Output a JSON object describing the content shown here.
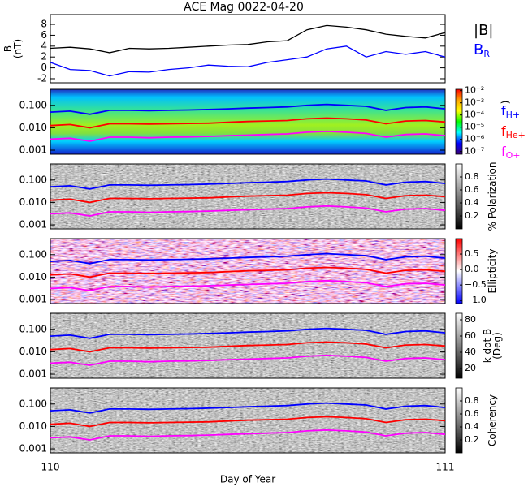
{
  "chart_data": [
    {
      "type": "line",
      "title": "ACE Mag 0022-04-20",
      "ylabel": [
        "B",
        "(nT)"
      ],
      "xlim": [
        110,
        111
      ],
      "ylim": [
        -2.75,
        9.8
      ],
      "yticks": [
        -2,
        0,
        2,
        4,
        6,
        8
      ],
      "x": [
        110,
        110.05,
        110.1,
        110.15,
        110.2,
        110.25,
        110.3,
        110.35,
        110.4,
        110.45,
        110.5,
        110.55,
        110.6,
        110.65,
        110.7,
        110.75,
        110.8,
        110.85,
        110.9,
        110.95,
        111
      ],
      "series": [
        {
          "name": "|B|",
          "color": "#000000",
          "values": [
            3.6,
            3.8,
            3.5,
            2.8,
            3.6,
            3.5,
            3.6,
            3.8,
            4.0,
            4.2,
            4.3,
            4.8,
            5.0,
            7.0,
            7.8,
            7.5,
            7.0,
            6.2,
            5.8,
            5.5,
            6.5
          ]
        },
        {
          "name": "B",
          "subscript": "R",
          "color": "#0000ff",
          "values": [
            1.0,
            -0.3,
            -0.5,
            -1.5,
            -0.7,
            -0.8,
            -0.3,
            0.0,
            0.5,
            0.3,
            0.2,
            1.0,
            1.5,
            2.0,
            3.5,
            4.0,
            2.0,
            3.0,
            2.5,
            3.0,
            2.0
          ]
        }
      ]
    },
    {
      "type": "spectrogram",
      "log_y": true,
      "legend": true,
      "xlim": [
        110,
        111
      ],
      "ylim": [
        0.00066,
        0.52
      ],
      "yticks": [
        {
          "value": 0.1,
          "label": "0.100"
        },
        {
          "value": 0.01,
          "label": "0.010"
        },
        {
          "value": 0.001,
          "label": "0.001"
        }
      ],
      "x": [
        110,
        110.05,
        110.1,
        110.15,
        110.2,
        110.25,
        110.3,
        110.35,
        110.4,
        110.45,
        110.5,
        110.55,
        110.6,
        110.65,
        110.7,
        110.75,
        110.8,
        110.85,
        110.9,
        110.95,
        111
      ],
      "series": [
        {
          "name": "f",
          "subscript": "H+",
          "color": "#0000ff",
          "values": [
            0.05,
            0.055,
            0.04,
            0.06,
            0.06,
            0.058,
            0.06,
            0.062,
            0.065,
            0.07,
            0.075,
            0.08,
            0.085,
            0.1,
            0.11,
            0.1,
            0.09,
            0.06,
            0.08,
            0.085,
            0.07
          ]
        },
        {
          "name": "f",
          "subscript": "He+",
          "color": "#ff0000",
          "values": [
            0.0125,
            0.014,
            0.01,
            0.015,
            0.015,
            0.0145,
            0.015,
            0.0155,
            0.016,
            0.0175,
            0.019,
            0.02,
            0.021,
            0.025,
            0.027,
            0.025,
            0.022,
            0.015,
            0.02,
            0.021,
            0.018
          ]
        },
        {
          "name": "f",
          "subscript": "O+",
          "color": "#ff00ff",
          "values": [
            0.0031,
            0.0034,
            0.0025,
            0.0038,
            0.0038,
            0.0036,
            0.0038,
            0.0039,
            0.0041,
            0.0044,
            0.0047,
            0.005,
            0.0053,
            0.0063,
            0.0069,
            0.0063,
            0.0056,
            0.0038,
            0.005,
            0.0053,
            0.0044
          ]
        }
      ],
      "colorbar": {
        "label": [
          ")"
        ],
        "colormap": "rainbow",
        "log": true,
        "lim": [
          6e-08,
          0.013
        ],
        "ticks": [
          {
            "value": 0.01,
            "label": "10⁻²"
          },
          {
            "value": 0.001,
            "label": "10⁻³"
          },
          {
            "value": 0.0001,
            "label": "10⁻⁴"
          },
          {
            "value": 1e-05,
            "label": "10⁻⁵"
          },
          {
            "value": 1e-06,
            "label": "10⁻⁶"
          },
          {
            "value": 1e-07,
            "label": "10⁻⁷"
          }
        ]
      }
    },
    {
      "type": "spectrogram",
      "log_y": true,
      "xlim": [
        110,
        111
      ],
      "ylim": [
        0.00066,
        0.52
      ],
      "yticks": [
        {
          "value": 0.1,
          "label": "0.100"
        },
        {
          "value": 0.01,
          "label": "0.010"
        },
        {
          "value": 0.001,
          "label": "0.001"
        }
      ],
      "x": [
        110,
        110.05,
        110.1,
        110.15,
        110.2,
        110.25,
        110.3,
        110.35,
        110.4,
        110.45,
        110.5,
        110.55,
        110.6,
        110.65,
        110.7,
        110.75,
        110.8,
        110.85,
        110.9,
        110.95,
        111
      ],
      "series": [
        {
          "color": "#0000ff",
          "values": [
            0.05,
            0.055,
            0.04,
            0.06,
            0.06,
            0.058,
            0.06,
            0.062,
            0.065,
            0.07,
            0.075,
            0.08,
            0.085,
            0.1,
            0.11,
            0.1,
            0.09,
            0.06,
            0.08,
            0.085,
            0.07
          ]
        },
        {
          "color": "#ff0000",
          "values": [
            0.0125,
            0.014,
            0.01,
            0.015,
            0.015,
            0.0145,
            0.015,
            0.0155,
            0.016,
            0.0175,
            0.019,
            0.02,
            0.021,
            0.025,
            0.027,
            0.025,
            0.022,
            0.015,
            0.02,
            0.021,
            0.018
          ]
        },
        {
          "color": "#ff00ff",
          "values": [
            0.0031,
            0.0034,
            0.0025,
            0.0038,
            0.0038,
            0.0036,
            0.0038,
            0.0039,
            0.0041,
            0.0044,
            0.0047,
            0.005,
            0.0053,
            0.0063,
            0.0069,
            0.0063,
            0.0056,
            0.0038,
            0.005,
            0.0053,
            0.0044
          ]
        }
      ],
      "colorbar": {
        "label": [
          "% Polarization"
        ],
        "colormap": "gray",
        "lim": [
          0,
          1
        ],
        "ticks": [
          0.2,
          0.4,
          0.6,
          0.8
        ]
      }
    },
    {
      "type": "spectrogram",
      "log_y": true,
      "xlim": [
        110,
        111
      ],
      "ylim": [
        0.00066,
        0.52
      ],
      "yticks": [
        {
          "value": 0.1,
          "label": "0.100"
        },
        {
          "value": 0.01,
          "label": "0.010"
        },
        {
          "value": 0.001,
          "label": "0.001"
        }
      ],
      "x": [
        110,
        110.05,
        110.1,
        110.15,
        110.2,
        110.25,
        110.3,
        110.35,
        110.4,
        110.45,
        110.5,
        110.55,
        110.6,
        110.65,
        110.7,
        110.75,
        110.8,
        110.85,
        110.9,
        110.95,
        111
      ],
      "series": [
        {
          "color": "#0000ff",
          "values": [
            0.05,
            0.055,
            0.04,
            0.06,
            0.06,
            0.058,
            0.06,
            0.062,
            0.065,
            0.07,
            0.075,
            0.08,
            0.085,
            0.1,
            0.11,
            0.1,
            0.09,
            0.06,
            0.08,
            0.085,
            0.07
          ]
        },
        {
          "color": "#ff0000",
          "values": [
            0.0125,
            0.014,
            0.01,
            0.015,
            0.015,
            0.0145,
            0.015,
            0.0155,
            0.016,
            0.0175,
            0.019,
            0.02,
            0.021,
            0.025,
            0.027,
            0.025,
            0.022,
            0.015,
            0.02,
            0.021,
            0.018
          ]
        },
        {
          "color": "#ff00ff",
          "values": [
            0.0031,
            0.0034,
            0.0025,
            0.0038,
            0.0038,
            0.0036,
            0.0038,
            0.0039,
            0.0041,
            0.0044,
            0.0047,
            0.005,
            0.0053,
            0.0063,
            0.0069,
            0.0063,
            0.0056,
            0.0038,
            0.005,
            0.0053,
            0.0044
          ]
        }
      ],
      "colorbar": {
        "label": [
          "Ellipticity"
        ],
        "colormap": "bwr",
        "lim": [
          -1.1,
          1
        ],
        "ticks": [
          {
            "value": 0.5,
            "label": "0.5"
          },
          {
            "value": 0,
            "label": "0.0"
          },
          {
            "value": -0.5,
            "label": "−0.5"
          },
          {
            "value": -1,
            "label": "−1.0"
          }
        ]
      }
    },
    {
      "type": "spectrogram",
      "log_y": true,
      "xlim": [
        110,
        111
      ],
      "ylim": [
        0.00066,
        0.52
      ],
      "yticks": [
        {
          "value": 0.1,
          "label": "0.100"
        },
        {
          "value": 0.01,
          "label": "0.010"
        },
        {
          "value": 0.001,
          "label": "0.001"
        }
      ],
      "x": [
        110,
        110.05,
        110.1,
        110.15,
        110.2,
        110.25,
        110.3,
        110.35,
        110.4,
        110.45,
        110.5,
        110.55,
        110.6,
        110.65,
        110.7,
        110.75,
        110.8,
        110.85,
        110.9,
        110.95,
        111
      ],
      "series": [
        {
          "color": "#0000ff",
          "values": [
            0.05,
            0.055,
            0.04,
            0.06,
            0.06,
            0.058,
            0.06,
            0.062,
            0.065,
            0.07,
            0.075,
            0.08,
            0.085,
            0.1,
            0.11,
            0.1,
            0.09,
            0.06,
            0.08,
            0.085,
            0.07
          ]
        },
        {
          "color": "#ff0000",
          "values": [
            0.0125,
            0.014,
            0.01,
            0.015,
            0.015,
            0.0145,
            0.015,
            0.0155,
            0.016,
            0.0175,
            0.019,
            0.02,
            0.021,
            0.025,
            0.027,
            0.025,
            0.022,
            0.015,
            0.02,
            0.021,
            0.018
          ]
        },
        {
          "color": "#ff00ff",
          "values": [
            0.0031,
            0.0034,
            0.0025,
            0.0038,
            0.0038,
            0.0036,
            0.0038,
            0.0039,
            0.0041,
            0.0044,
            0.0047,
            0.005,
            0.0053,
            0.0063,
            0.0069,
            0.0063,
            0.0056,
            0.0038,
            0.005,
            0.0053,
            0.0044
          ]
        }
      ],
      "colorbar": {
        "label": [
          "k dot B",
          "(Deg)"
        ],
        "colormap": "gray",
        "lim": [
          8,
          88
        ],
        "ticks": [
          20,
          40,
          60,
          80
        ]
      }
    },
    {
      "type": "spectrogram",
      "log_y": true,
      "xlim": [
        110,
        111
      ],
      "ylim": [
        0.00066,
        0.52
      ],
      "yticks": [
        {
          "value": 0.1,
          "label": "0.100"
        },
        {
          "value": 0.01,
          "label": "0.010"
        },
        {
          "value": 0.001,
          "label": "0.001"
        }
      ],
      "xticks": [
        110,
        111
      ],
      "xlabel": "Day of Year",
      "x": [
        110,
        110.05,
        110.1,
        110.15,
        110.2,
        110.25,
        110.3,
        110.35,
        110.4,
        110.45,
        110.5,
        110.55,
        110.6,
        110.65,
        110.7,
        110.75,
        110.8,
        110.85,
        110.9,
        110.95,
        111
      ],
      "series": [
        {
          "color": "#0000ff",
          "values": [
            0.05,
            0.055,
            0.04,
            0.06,
            0.06,
            0.058,
            0.06,
            0.062,
            0.065,
            0.07,
            0.075,
            0.08,
            0.085,
            0.1,
            0.11,
            0.1,
            0.09,
            0.06,
            0.08,
            0.085,
            0.07
          ]
        },
        {
          "color": "#ff0000",
          "values": [
            0.0125,
            0.014,
            0.01,
            0.015,
            0.015,
            0.0145,
            0.015,
            0.0155,
            0.016,
            0.0175,
            0.019,
            0.02,
            0.021,
            0.025,
            0.027,
            0.025,
            0.022,
            0.015,
            0.02,
            0.021,
            0.018
          ]
        },
        {
          "color": "#ff00ff",
          "values": [
            0.0031,
            0.0034,
            0.0025,
            0.0038,
            0.0038,
            0.0036,
            0.0038,
            0.0039,
            0.0041,
            0.0044,
            0.0047,
            0.005,
            0.0053,
            0.0063,
            0.0069,
            0.0063,
            0.0056,
            0.0038,
            0.005,
            0.0053,
            0.0044
          ]
        }
      ],
      "colorbar": {
        "label": [
          "Coherency"
        ],
        "colormap": "gray",
        "lim": [
          0,
          1
        ],
        "ticks": [
          0.2,
          0.4,
          0.6,
          0.8
        ]
      }
    }
  ]
}
